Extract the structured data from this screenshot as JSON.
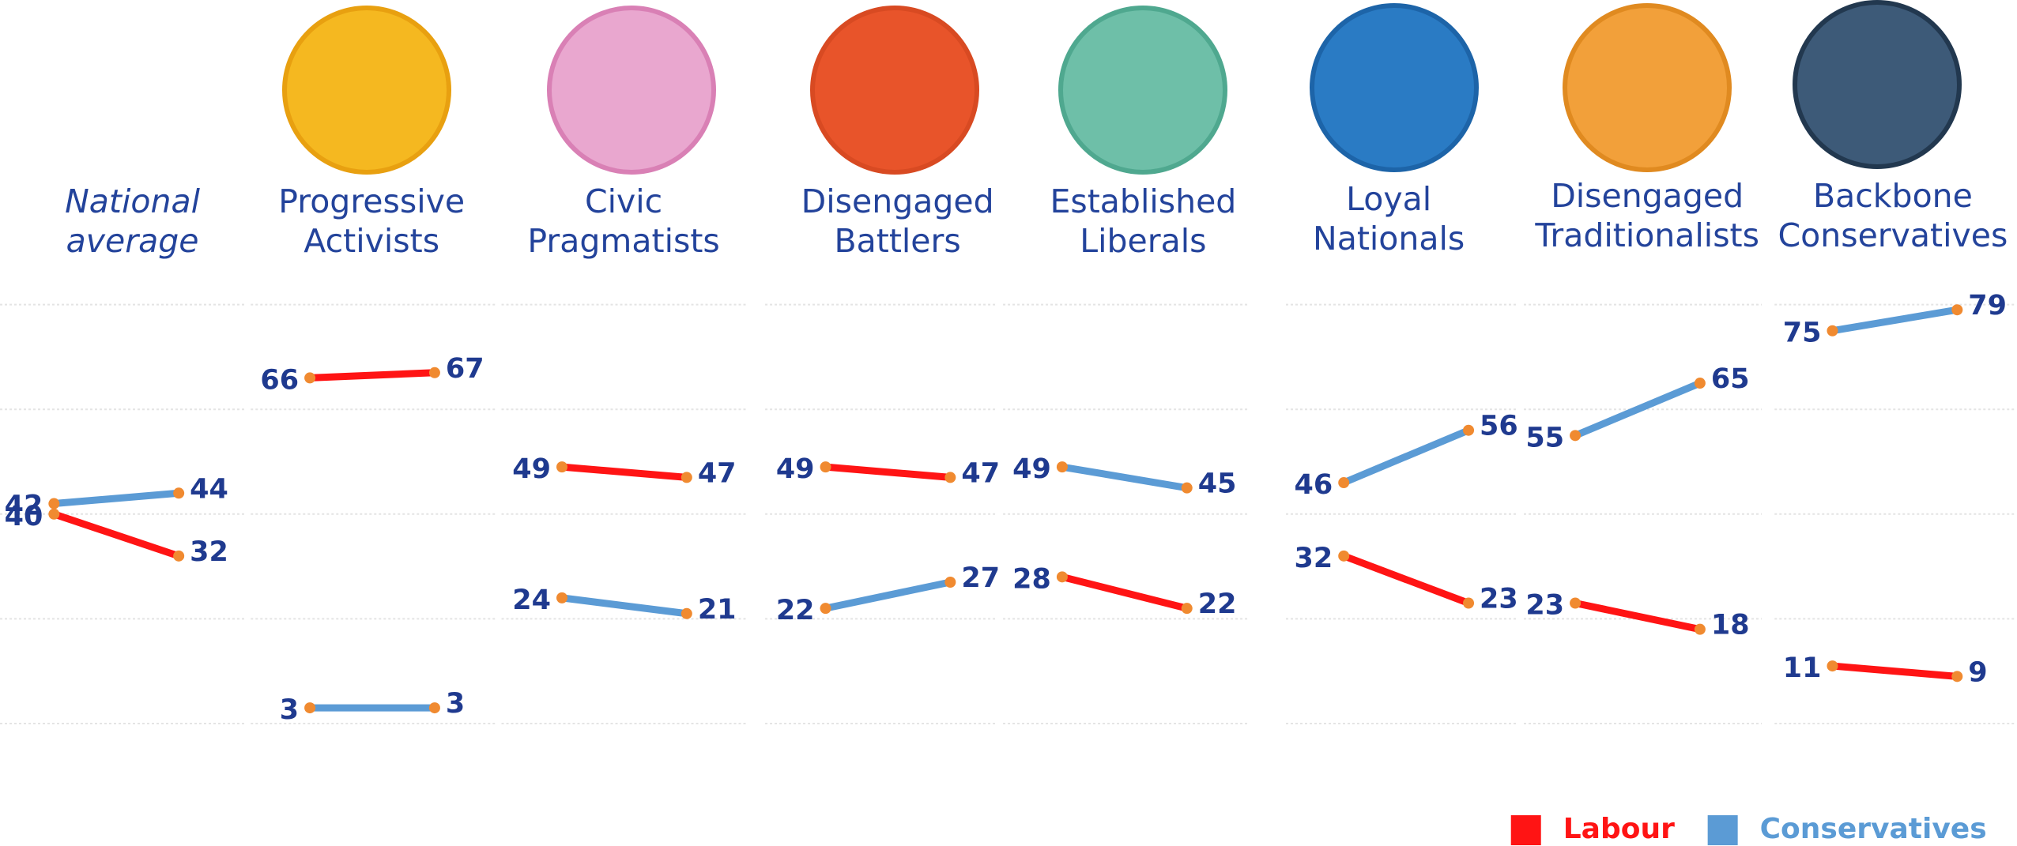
{
  "chart_data": {
    "type": "slope",
    "categories": [
      "National average",
      "Progressive Activists",
      "Civic Pragmatists",
      "Disengaged Battlers",
      "Established Liberals",
      "Loyal Nationals",
      "Disengaged Traditionalists",
      "Backbone Conservatives"
    ],
    "series": [
      {
        "name": "Labour",
        "color": "#ff1414",
        "values": [
          [
            40,
            32
          ],
          [
            66,
            67
          ],
          [
            49,
            47
          ],
          [
            49,
            47
          ],
          [
            28,
            22
          ],
          [
            32,
            23
          ],
          [
            23,
            18
          ],
          [
            11,
            9
          ]
        ]
      },
      {
        "name": "Conservatives",
        "color": "#5b9bd5",
        "values": [
          [
            42,
            44
          ],
          [
            3,
            3
          ],
          [
            24,
            21
          ],
          [
            22,
            27
          ],
          [
            49,
            45
          ],
          [
            46,
            56
          ],
          [
            55,
            65
          ],
          [
            75,
            79
          ]
        ]
      }
    ],
    "ylim": [
      0,
      80
    ],
    "yticks": [
      0,
      20,
      40,
      60,
      80
    ],
    "grid": true,
    "legend": "bottom-right"
  }
}
